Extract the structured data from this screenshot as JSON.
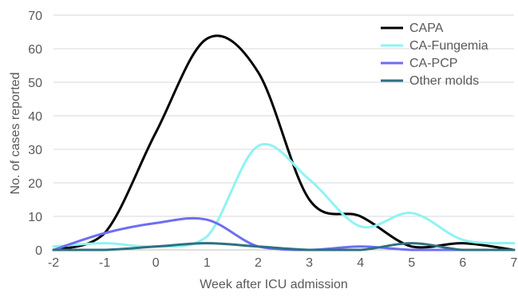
{
  "chart_data": {
    "type": "line",
    "title": "",
    "xlabel": "Week after ICU admission",
    "ylabel": "No. of cases reported",
    "xlim": [
      -2,
      7
    ],
    "ylim": [
      0,
      70
    ],
    "x_ticks": [
      "-2",
      "-1",
      "0",
      "1",
      "2",
      "3",
      "4",
      "5",
      "6",
      "7"
    ],
    "y_ticks": [
      "0",
      "10",
      "20",
      "30",
      "40",
      "50",
      "60",
      "70"
    ],
    "grid": "horizontal",
    "legend_position": "top-right",
    "x": [
      -2,
      -1,
      0,
      1,
      2,
      3,
      4,
      5,
      6,
      7
    ],
    "series": [
      {
        "name": "CAPA",
        "color": "#000000",
        "values": [
          0,
          5,
          35,
          63,
          53,
          15,
          10,
          1,
          2,
          0
        ]
      },
      {
        "name": "CA-Fungemia",
        "color": "#8ff3f3",
        "values": [
          1,
          2,
          1,
          4,
          31,
          21,
          7,
          11,
          3,
          2
        ]
      },
      {
        "name": "CA-PCP",
        "color": "#6e6ef0",
        "values": [
          0,
          5,
          8,
          9,
          1,
          0,
          1,
          0,
          0,
          0
        ]
      },
      {
        "name": "Other molds",
        "color": "#2e7081",
        "values": [
          0,
          0,
          1,
          2,
          1,
          0,
          0,
          2,
          0,
          0
        ]
      }
    ]
  }
}
